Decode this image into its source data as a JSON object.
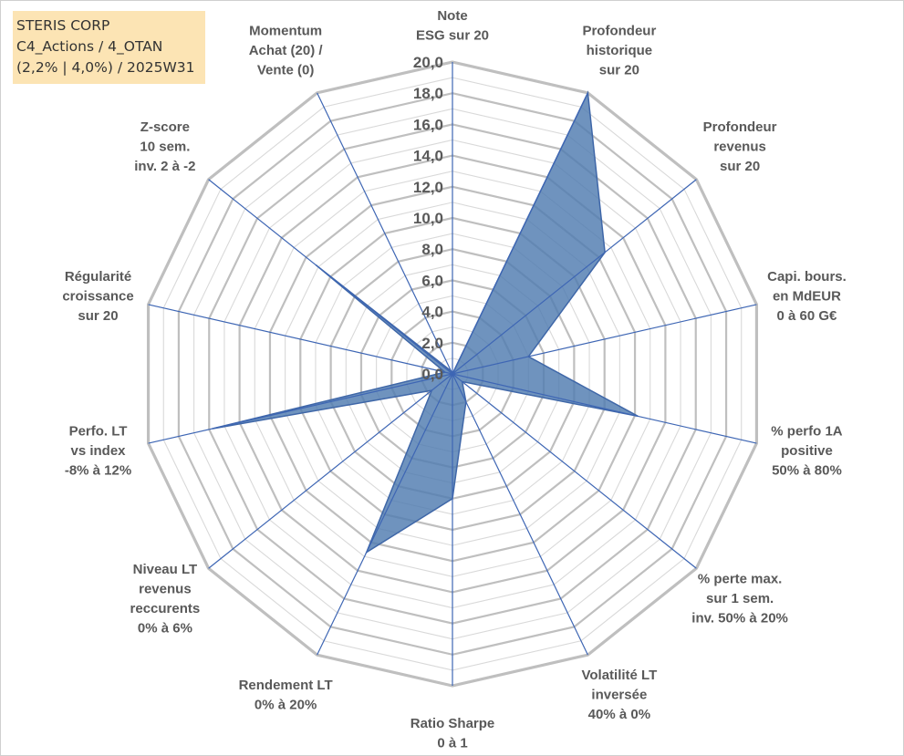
{
  "header": {
    "line1": "STERIS CORP",
    "line2": "C4_Actions / 4_OTAN",
    "line3": "(2,2% | 4,0%) / 2025W31"
  },
  "colors": {
    "series_fill": "#4f7bb0",
    "series_stroke": "#3f67a8",
    "spokes": "#3e66b4",
    "grid_major": "#bfbfbf",
    "grid_minor": "#d9d9d9",
    "labels": "#595959",
    "header_bg": "#fce4b4"
  },
  "chart_data": {
    "type": "radar",
    "title": "",
    "rlim": [
      0,
      20
    ],
    "ticks": [
      "0,0",
      "2,0",
      "4,0",
      "6,0",
      "8,0",
      "10,0",
      "12,0",
      "14,0",
      "16,0",
      "18,0",
      "20,0"
    ],
    "grid": true,
    "categories": [
      [
        "Note",
        "ESG sur 20"
      ],
      [
        "Profondeur",
        "historique",
        "sur 20"
      ],
      [
        "Profondeur",
        "revenus",
        "sur 20"
      ],
      [
        "Capi. bours.",
        "en MdEUR",
        "0 à 60 G€"
      ],
      [
        "% perfo 1A",
        "positive",
        "50% à 80%"
      ],
      [
        "% perte max.",
        "sur 1 sem.",
        "inv. 50% à 20%"
      ],
      [
        "Volatilité LT",
        "inversée",
        "40% à 0%"
      ],
      [
        "Ratio Sharpe",
        "0 à 1"
      ],
      [
        "Rendement LT",
        "0% à 20%"
      ],
      [
        "Niveau LT",
        "revenus",
        "reccurents",
        "0% à 6%"
      ],
      [
        "Perfo. LT",
        "vs index",
        "-8% à 12%"
      ],
      [
        "Régularité",
        "croissance",
        "sur 20"
      ],
      [
        "Z-score",
        "10 sem.",
        "inv. 2 à -2"
      ],
      [
        "Momentum",
        "Achat (20) /",
        "Vente (0)"
      ]
    ],
    "series": [
      {
        "values": [
          0,
          20,
          12.5,
          5,
          12.2,
          0.8,
          2,
          8,
          12.7,
          1.7,
          15.8,
          0.5,
          11.2,
          0.2
        ]
      }
    ]
  }
}
